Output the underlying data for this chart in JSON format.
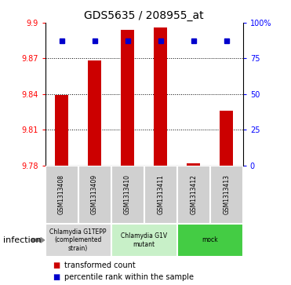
{
  "title": "GDS5635 / 208955_at",
  "samples": [
    "GSM1313408",
    "GSM1313409",
    "GSM1313410",
    "GSM1313411",
    "GSM1313412",
    "GSM1313413"
  ],
  "bar_values": [
    9.839,
    9.868,
    9.894,
    9.896,
    9.782,
    9.826
  ],
  "percentile_values": [
    87.6,
    87.6,
    87.6,
    87.6,
    87.6,
    87.6
  ],
  "ylim_left": [
    9.78,
    9.9
  ],
  "ylim_right": [
    0,
    100
  ],
  "yticks_left": [
    9.78,
    9.81,
    9.84,
    9.87,
    9.9
  ],
  "yticks_right": [
    0,
    25,
    50,
    75,
    100
  ],
  "ytick_right_labels": [
    "0",
    "25",
    "50",
    "75",
    "100%"
  ],
  "bar_color": "#cc0000",
  "percentile_color": "#0000cc",
  "groups": [
    {
      "label": "Chlamydia G1TEPP\n(complemented\nstrain)",
      "color": "#d8d8d8",
      "span": [
        0,
        2
      ]
    },
    {
      "label": "Chlamydia G1V\nmutant",
      "color": "#c8f0c8",
      "span": [
        2,
        4
      ]
    },
    {
      "label": "mock",
      "color": "#44cc44",
      "span": [
        4,
        6
      ]
    }
  ],
  "infection_label": "infection",
  "legend_items": [
    {
      "label": "transformed count",
      "color": "#cc0000"
    },
    {
      "label": "percentile rank within the sample",
      "color": "#0000cc"
    }
  ],
  "bar_width": 0.4,
  "sample_area_color": "#d0d0d0",
  "background_color": "#ffffff"
}
